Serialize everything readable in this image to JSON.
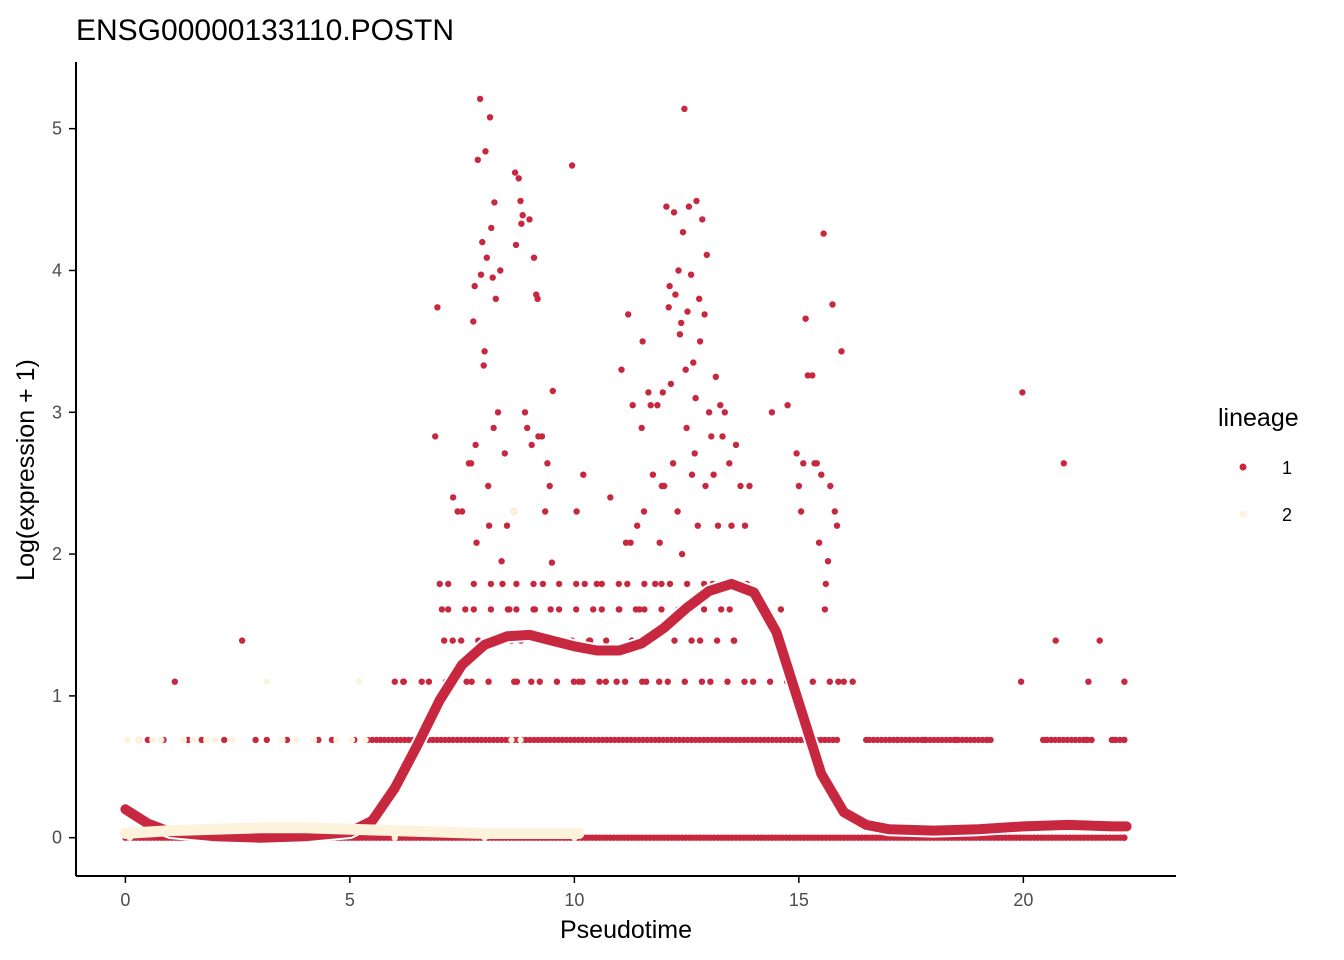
{
  "colors": {
    "lineage1": "#c8283f",
    "lineage2": "#fdf2dc",
    "axis": "#000000",
    "background": "#ffffff"
  },
  "chart_data": {
    "type": "scatter",
    "title": "ENSG00000133110.POSTN",
    "xlabel": "Pseudotime",
    "ylabel": "Log(expression + 1)",
    "xlim": [
      -1.1,
      23.4
    ],
    "ylim": [
      -0.27,
      5.47
    ],
    "x_ticks": [
      0,
      5,
      10,
      15,
      20
    ],
    "x_tick_labels": [
      "0",
      "5",
      "10",
      "15",
      "20"
    ],
    "y_ticks": [
      0,
      1,
      2,
      3,
      4,
      5
    ],
    "y_tick_labels": [
      "0",
      "1",
      "2",
      "3",
      "4",
      "5"
    ],
    "grid": false,
    "legend": {
      "title": "lineage",
      "position": "right",
      "entries": [
        {
          "label": "1",
          "color": "#c8283f"
        },
        {
          "label": "2",
          "color": "#fdf2dc"
        }
      ]
    },
    "series": [
      {
        "name": "1",
        "color": "#c8283f",
        "points": [
          [
            0.3,
            0.69
          ],
          [
            0.5,
            0.69
          ],
          [
            0.85,
            0.69
          ],
          [
            1.1,
            1.1
          ],
          [
            1.4,
            0.69
          ],
          [
            1.7,
            0.69
          ],
          [
            2.2,
            0.69
          ],
          [
            2.6,
            1.39
          ],
          [
            2.9,
            0.69
          ],
          [
            3.15,
            0.69
          ],
          [
            3.6,
            0.69
          ],
          [
            4.3,
            0.69
          ],
          [
            4.6,
            0.69
          ],
          [
            5.1,
            0.69
          ],
          [
            5.4,
            0.69
          ],
          [
            6.0,
            1.1
          ],
          [
            6.2,
            1.1
          ],
          [
            6.6,
            1.1
          ],
          [
            6.9,
            2.83
          ],
          [
            6.95,
            3.74
          ],
          [
            7.0,
            1.79
          ],
          [
            7.05,
            1.61
          ],
          [
            7.1,
            1.39
          ],
          [
            7.2,
            1.1
          ],
          [
            7.3,
            2.4
          ],
          [
            7.4,
            2.3
          ],
          [
            7.5,
            2.3
          ],
          [
            7.6,
            1.1
          ],
          [
            7.65,
            2.64
          ],
          [
            7.7,
            2.64
          ],
          [
            7.75,
            3.64
          ],
          [
            7.78,
            3.89
          ],
          [
            7.8,
            2.77
          ],
          [
            7.82,
            2.08
          ],
          [
            7.85,
            4.78
          ],
          [
            7.9,
            5.21
          ],
          [
            7.92,
            3.97
          ],
          [
            7.95,
            4.2
          ],
          [
            7.98,
            3.33
          ],
          [
            8.0,
            3.43
          ],
          [
            8.02,
            4.84
          ],
          [
            8.05,
            4.09
          ],
          [
            8.08,
            2.48
          ],
          [
            8.1,
            2.2
          ],
          [
            8.12,
            5.08
          ],
          [
            8.15,
            4.3
          ],
          [
            8.18,
            3.95
          ],
          [
            8.2,
            2.89
          ],
          [
            8.22,
            4.48
          ],
          [
            8.25,
            3.8
          ],
          [
            8.3,
            3.0
          ],
          [
            8.35,
            4.0
          ],
          [
            8.38,
            1.95
          ],
          [
            8.4,
            1.79
          ],
          [
            8.45,
            2.71
          ],
          [
            8.5,
            2.2
          ],
          [
            8.55,
            1.61
          ],
          [
            8.6,
            1.39
          ],
          [
            8.65,
            2.3
          ],
          [
            8.68,
            4.69
          ],
          [
            8.7,
            4.18
          ],
          [
            8.72,
            1.1
          ],
          [
            8.76,
            4.65
          ],
          [
            8.8,
            4.49
          ],
          [
            8.82,
            4.33
          ],
          [
            8.85,
            4.39
          ],
          [
            8.9,
            3.0
          ],
          [
            8.95,
            2.89
          ],
          [
            9.0,
            4.36
          ],
          [
            9.05,
            2.77
          ],
          [
            9.1,
            4.09
          ],
          [
            9.12,
            1.61
          ],
          [
            9.15,
            3.83
          ],
          [
            9.18,
            3.8
          ],
          [
            9.2,
            2.83
          ],
          [
            9.28,
            2.83
          ],
          [
            9.3,
            1.79
          ],
          [
            9.35,
            2.3
          ],
          [
            9.4,
            2.64
          ],
          [
            9.45,
            2.48
          ],
          [
            9.5,
            1.94
          ],
          [
            9.52,
            3.15
          ],
          [
            9.95,
            4.74
          ],
          [
            9.95,
            1.39
          ],
          [
            10.05,
            2.3
          ],
          [
            10.1,
            1.1
          ],
          [
            10.2,
            2.56
          ],
          [
            10.35,
            1.39
          ],
          [
            10.5,
            1.79
          ],
          [
            10.7,
            1.1
          ],
          [
            10.8,
            2.4
          ],
          [
            11.0,
            1.61
          ],
          [
            11.05,
            3.3
          ],
          [
            11.15,
            2.08
          ],
          [
            11.2,
            3.69
          ],
          [
            11.25,
            2.08
          ],
          [
            11.3,
            3.05
          ],
          [
            11.4,
            2.2
          ],
          [
            11.45,
            1.61
          ],
          [
            11.5,
            2.89
          ],
          [
            11.52,
            3.5
          ],
          [
            11.55,
            2.3
          ],
          [
            11.6,
            1.1
          ],
          [
            11.65,
            3.14
          ],
          [
            11.7,
            3.05
          ],
          [
            11.75,
            2.56
          ],
          [
            11.8,
            1.79
          ],
          [
            11.85,
            3.05
          ],
          [
            11.9,
            2.08
          ],
          [
            11.95,
            2.48
          ],
          [
            11.97,
            3.14
          ],
          [
            12.0,
            2.48
          ],
          [
            12.05,
            4.45
          ],
          [
            12.1,
            3.74
          ],
          [
            12.12,
            3.89
          ],
          [
            12.15,
            3.2
          ],
          [
            12.2,
            2.64
          ],
          [
            12.22,
            4.41
          ],
          [
            12.25,
            3.83
          ],
          [
            12.3,
            2.3
          ],
          [
            12.32,
            4.0
          ],
          [
            12.35,
            3.55
          ],
          [
            12.38,
            3.63
          ],
          [
            12.4,
            2.0
          ],
          [
            12.42,
            4.27
          ],
          [
            12.45,
            5.14
          ],
          [
            12.48,
            3.3
          ],
          [
            12.5,
            2.89
          ],
          [
            12.52,
            3.71
          ],
          [
            12.55,
            4.45
          ],
          [
            12.6,
            3.97
          ],
          [
            12.62,
            2.56
          ],
          [
            12.65,
            3.35
          ],
          [
            12.68,
            2.71
          ],
          [
            12.7,
            3.1
          ],
          [
            12.72,
            4.49
          ],
          [
            12.75,
            2.2
          ],
          [
            12.78,
            3.8
          ],
          [
            12.8,
            3.5
          ],
          [
            12.85,
            4.36
          ],
          [
            12.9,
            3.69
          ],
          [
            12.92,
            2.48
          ],
          [
            12.95,
            4.11
          ],
          [
            13.0,
            3.0
          ],
          [
            13.05,
            2.83
          ],
          [
            13.1,
            2.56
          ],
          [
            13.15,
            3.25
          ],
          [
            13.2,
            2.2
          ],
          [
            13.25,
            3.05
          ],
          [
            13.3,
            2.83
          ],
          [
            13.35,
            3.0
          ],
          [
            13.45,
            2.64
          ],
          [
            13.5,
            2.2
          ],
          [
            13.55,
            1.39
          ],
          [
            13.6,
            2.77
          ],
          [
            13.7,
            2.48
          ],
          [
            13.8,
            2.2
          ],
          [
            13.9,
            2.48
          ],
          [
            14.4,
            3.0
          ],
          [
            14.6,
            1.61
          ],
          [
            14.75,
            3.05
          ],
          [
            14.9,
            1.1
          ],
          [
            14.95,
            2.71
          ],
          [
            15.0,
            2.48
          ],
          [
            15.05,
            2.3
          ],
          [
            15.1,
            2.64
          ],
          [
            15.15,
            3.66
          ],
          [
            15.2,
            3.26
          ],
          [
            15.3,
            3.26
          ],
          [
            15.35,
            2.64
          ],
          [
            15.4,
            2.64
          ],
          [
            15.45,
            2.08
          ],
          [
            15.5,
            2.56
          ],
          [
            15.55,
            4.26
          ],
          [
            15.58,
            1.61
          ],
          [
            15.6,
            1.79
          ],
          [
            15.65,
            1.95
          ],
          [
            15.7,
            2.48
          ],
          [
            15.75,
            3.76
          ],
          [
            15.8,
            2.3
          ],
          [
            15.85,
            2.2
          ],
          [
            15.95,
            3.43
          ],
          [
            16.0,
            1.1
          ],
          [
            16.2,
            1.1
          ],
          [
            16.5,
            0.69
          ],
          [
            17.2,
            0.69
          ],
          [
            17.8,
            0.69
          ],
          [
            18.5,
            0.69
          ],
          [
            19.2,
            0.69
          ],
          [
            19.95,
            1.1
          ],
          [
            19.98,
            3.14
          ],
          [
            20.5,
            0.69
          ],
          [
            20.72,
            1.39
          ],
          [
            20.9,
            2.64
          ],
          [
            21.4,
            0.69
          ],
          [
            21.45,
            1.1
          ],
          [
            21.7,
            1.39
          ],
          [
            22.0,
            0.69
          ],
          [
            22.25,
            1.1
          ],
          [
            22.25,
            0.69
          ],
          [
            22.25,
            0.0
          ]
        ],
        "smooth": [
          [
            0.0,
            0.2
          ],
          [
            0.5,
            0.1
          ],
          [
            1.0,
            0.04
          ],
          [
            2.0,
            0.01
          ],
          [
            3.0,
            0.0
          ],
          [
            4.0,
            0.01
          ],
          [
            5.0,
            0.04
          ],
          [
            5.5,
            0.12
          ],
          [
            6.0,
            0.35
          ],
          [
            6.5,
            0.65
          ],
          [
            7.0,
            0.97
          ],
          [
            7.5,
            1.22
          ],
          [
            8.0,
            1.36
          ],
          [
            8.5,
            1.42
          ],
          [
            9.0,
            1.43
          ],
          [
            9.5,
            1.39
          ],
          [
            10.0,
            1.35
          ],
          [
            10.5,
            1.32
          ],
          [
            11.0,
            1.32
          ],
          [
            11.5,
            1.37
          ],
          [
            12.0,
            1.48
          ],
          [
            12.5,
            1.62
          ],
          [
            13.0,
            1.74
          ],
          [
            13.5,
            1.79
          ],
          [
            14.0,
            1.73
          ],
          [
            14.5,
            1.45
          ],
          [
            15.0,
            0.95
          ],
          [
            15.5,
            0.45
          ],
          [
            16.0,
            0.18
          ],
          [
            16.5,
            0.09
          ],
          [
            17.0,
            0.06
          ],
          [
            18.0,
            0.05
          ],
          [
            19.0,
            0.06
          ],
          [
            20.0,
            0.08
          ],
          [
            21.0,
            0.09
          ],
          [
            22.0,
            0.08
          ],
          [
            22.3,
            0.08
          ]
        ]
      },
      {
        "name": "2",
        "color": "#fdf2dc",
        "points": [
          [
            0.05,
            0.69
          ],
          [
            0.3,
            0.69
          ],
          [
            0.6,
            0.69
          ],
          [
            0.8,
            0.69
          ],
          [
            1.3,
            0.69
          ],
          [
            1.5,
            0.69
          ],
          [
            1.8,
            0.69
          ],
          [
            2.0,
            0.69
          ],
          [
            2.4,
            0.69
          ],
          [
            3.15,
            1.1
          ],
          [
            3.5,
            0.69
          ],
          [
            3.8,
            0.69
          ],
          [
            4.2,
            0.69
          ],
          [
            4.7,
            0.69
          ],
          [
            5.05,
            0.69
          ],
          [
            5.2,
            1.1
          ],
          [
            5.35,
            0.69
          ],
          [
            8.65,
            2.3
          ],
          [
            8.6,
            0.69
          ],
          [
            8.8,
            0.69
          ],
          [
            0.1,
            0.0
          ],
          [
            2.0,
            0.0
          ],
          [
            4.0,
            0.0
          ],
          [
            6.0,
            0.0
          ],
          [
            8.0,
            0.0
          ],
          [
            10.0,
            0.0
          ]
        ],
        "smooth": [
          [
            0.0,
            0.03
          ],
          [
            1.0,
            0.05
          ],
          [
            2.0,
            0.06
          ],
          [
            3.0,
            0.07
          ],
          [
            4.0,
            0.07
          ],
          [
            5.0,
            0.06
          ],
          [
            6.0,
            0.05
          ],
          [
            7.0,
            0.04
          ],
          [
            8.0,
            0.03
          ],
          [
            9.0,
            0.03
          ],
          [
            10.0,
            0.03
          ],
          [
            10.1,
            0.03
          ]
        ]
      }
    ],
    "baseline_band": {
      "series": "1",
      "y": 0.0,
      "x_range": [
        0.0,
        22.3
      ]
    },
    "y_0_69_band": {
      "series": "1",
      "y": 0.69,
      "x_range": [
        5.5,
        22.3
      ]
    }
  }
}
